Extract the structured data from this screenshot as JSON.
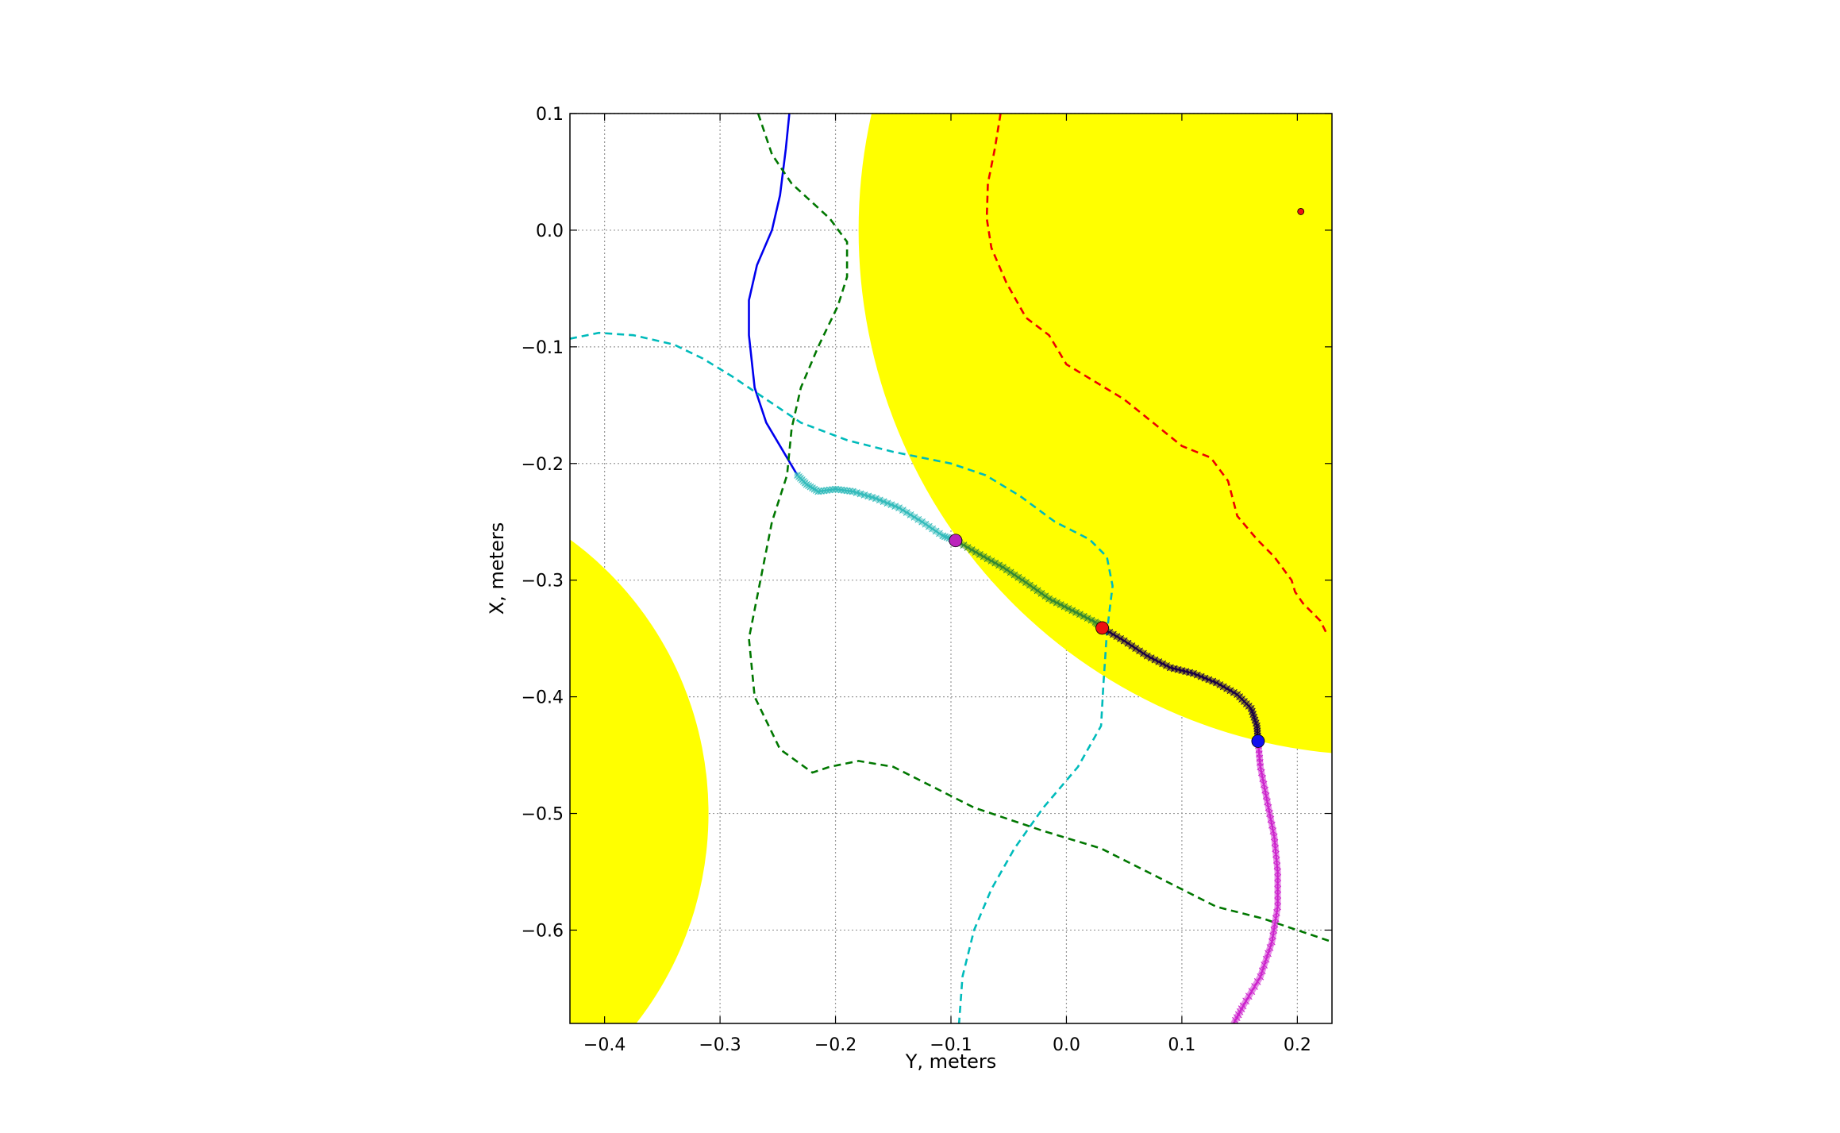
{
  "chart_data": {
    "type": "line",
    "title": "",
    "xlabel": "Y, meters",
    "ylabel": "X, meters",
    "xlim": [
      -0.43,
      0.23
    ],
    "ylim": [
      -0.68,
      0.1
    ],
    "grid": true,
    "grid_style": "dotted",
    "legend": "none",
    "x_ticks": [
      -0.4,
      -0.3,
      -0.2,
      -0.1,
      0.0,
      0.1,
      0.2
    ],
    "x_tick_labels": [
      "−0.4",
      "−0.3",
      "−0.2",
      "−0.1",
      "0.0",
      "0.1",
      "0.2"
    ],
    "y_ticks": [
      0.1,
      0.0,
      -0.1,
      -0.2,
      -0.3,
      -0.4,
      -0.5,
      -0.6
    ],
    "y_tick_labels": [
      "0.1",
      "0.0",
      "−0.1",
      "−0.2",
      "−0.3",
      "−0.4",
      "−0.5",
      "−0.6"
    ],
    "colors": {
      "obstacle": "#ffff00",
      "blue_path": "#0000ee",
      "green_boundary": "#007700",
      "cyan_boundary": "#00bbbb",
      "red_boundary": "#ee0000",
      "cyan_markers": "#33bbbb",
      "green_markers": "#338833",
      "dark_segment": "#1a0044",
      "magenta_markers": "#cc22cc",
      "purple_path": "#5522cc"
    },
    "obstacles": [
      {
        "name": "upper-right",
        "cx": 0.27,
        "cy": 0.0,
        "r": 0.45
      },
      {
        "name": "lower-left",
        "cx": -0.6,
        "cy": -0.5,
        "r": 0.29
      }
    ],
    "series": [
      {
        "style": "solid",
        "color_key": "blue_path",
        "points": [
          [
            -0.24,
            0.1
          ],
          [
            -0.243,
            0.07
          ],
          [
            -0.248,
            0.03
          ],
          [
            -0.255,
            0.0
          ],
          [
            -0.268,
            -0.03
          ],
          [
            -0.275,
            -0.06
          ],
          [
            -0.275,
            -0.09
          ],
          [
            -0.27,
            -0.135
          ],
          [
            -0.26,
            -0.165
          ],
          [
            -0.245,
            -0.19
          ],
          [
            -0.233,
            -0.21
          ]
        ]
      },
      {
        "style": "dashed",
        "color_key": "green_boundary",
        "points": [
          [
            -0.267,
            0.1
          ],
          [
            -0.255,
            0.065
          ],
          [
            -0.238,
            0.04
          ],
          [
            -0.205,
            0.01
          ],
          [
            -0.19,
            -0.01
          ],
          [
            -0.19,
            -0.04
          ],
          [
            -0.198,
            -0.065
          ],
          [
            -0.215,
            -0.1
          ],
          [
            -0.23,
            -0.135
          ],
          [
            -0.238,
            -0.17
          ],
          [
            -0.242,
            -0.21
          ],
          [
            -0.255,
            -0.25
          ],
          [
            -0.265,
            -0.3
          ],
          [
            -0.275,
            -0.35
          ],
          [
            -0.27,
            -0.4
          ],
          [
            -0.248,
            -0.445
          ],
          [
            -0.22,
            -0.465
          ],
          [
            -0.205,
            -0.46
          ],
          [
            -0.18,
            -0.455
          ],
          [
            -0.15,
            -0.46
          ],
          [
            -0.12,
            -0.475
          ],
          [
            -0.08,
            -0.495
          ],
          [
            -0.02,
            -0.515
          ],
          [
            0.03,
            -0.53
          ],
          [
            0.08,
            -0.555
          ],
          [
            0.13,
            -0.58
          ],
          [
            0.17,
            -0.59
          ],
          [
            0.2,
            -0.6
          ],
          [
            0.23,
            -0.61
          ]
        ]
      },
      {
        "style": "dashed",
        "color_key": "cyan_boundary",
        "points": [
          [
            -0.43,
            -0.093
          ],
          [
            -0.405,
            -0.088
          ],
          [
            -0.375,
            -0.09
          ],
          [
            -0.34,
            -0.098
          ],
          [
            -0.315,
            -0.11
          ],
          [
            -0.29,
            -0.125
          ],
          [
            -0.26,
            -0.145
          ],
          [
            -0.23,
            -0.165
          ],
          [
            -0.19,
            -0.18
          ],
          [
            -0.15,
            -0.19
          ],
          [
            -0.1,
            -0.2
          ],
          [
            -0.07,
            -0.21
          ],
          [
            -0.04,
            -0.228
          ],
          [
            -0.01,
            -0.25
          ],
          [
            0.02,
            -0.265
          ],
          [
            0.035,
            -0.28
          ],
          [
            0.04,
            -0.305
          ],
          [
            0.035,
            -0.345
          ],
          [
            0.032,
            -0.39
          ],
          [
            0.03,
            -0.425
          ],
          [
            0.01,
            -0.46
          ],
          [
            -0.02,
            -0.495
          ],
          [
            -0.045,
            -0.53
          ],
          [
            -0.065,
            -0.565
          ],
          [
            -0.08,
            -0.6
          ],
          [
            -0.09,
            -0.64
          ],
          [
            -0.093,
            -0.68
          ]
        ]
      },
      {
        "style": "dashed",
        "color_key": "red_boundary",
        "points": [
          [
            -0.057,
            0.1
          ],
          [
            -0.062,
            0.07
          ],
          [
            -0.068,
            0.04
          ],
          [
            -0.069,
            0.01
          ],
          [
            -0.065,
            -0.015
          ],
          [
            -0.052,
            -0.045
          ],
          [
            -0.035,
            -0.075
          ],
          [
            -0.015,
            -0.09
          ],
          [
            0.0,
            -0.115
          ],
          [
            0.025,
            -0.13
          ],
          [
            0.05,
            -0.145
          ],
          [
            0.075,
            -0.165
          ],
          [
            0.1,
            -0.185
          ],
          [
            0.125,
            -0.195
          ],
          [
            0.14,
            -0.215
          ],
          [
            0.148,
            -0.245
          ],
          [
            0.165,
            -0.265
          ],
          [
            0.18,
            -0.28
          ],
          [
            0.195,
            -0.3
          ],
          [
            0.198,
            -0.31
          ],
          [
            0.205,
            -0.32
          ],
          [
            0.22,
            -0.335
          ],
          [
            0.225,
            -0.345
          ]
        ]
      },
      {
        "style": "markers",
        "color_key": "cyan_markers",
        "points": [
          [
            -0.233,
            -0.21
          ],
          [
            -0.225,
            -0.218
          ],
          [
            -0.215,
            -0.224
          ],
          [
            -0.2,
            -0.222
          ],
          [
            -0.185,
            -0.224
          ],
          [
            -0.165,
            -0.23
          ],
          [
            -0.145,
            -0.238
          ],
          [
            -0.125,
            -0.25
          ],
          [
            -0.107,
            -0.262
          ],
          [
            -0.096,
            -0.266
          ]
        ]
      },
      {
        "style": "markers",
        "color_key": "green_markers",
        "points": [
          [
            -0.096,
            -0.266
          ],
          [
            -0.075,
            -0.278
          ],
          [
            -0.055,
            -0.289
          ],
          [
            -0.035,
            -0.302
          ],
          [
            -0.015,
            -0.316
          ],
          [
            0.005,
            -0.326
          ],
          [
            0.025,
            -0.336
          ],
          [
            0.031,
            -0.341
          ]
        ]
      },
      {
        "style": "markers",
        "color_key": "dark_segment",
        "points": [
          [
            0.031,
            -0.341
          ],
          [
            0.05,
            -0.352
          ],
          [
            0.07,
            -0.365
          ],
          [
            0.09,
            -0.375
          ],
          [
            0.11,
            -0.38
          ],
          [
            0.13,
            -0.388
          ],
          [
            0.148,
            -0.398
          ],
          [
            0.16,
            -0.41
          ],
          [
            0.165,
            -0.425
          ],
          [
            0.166,
            -0.438
          ]
        ]
      },
      {
        "style": "markers",
        "color_key": "magenta_markers",
        "points": [
          [
            0.166,
            -0.438
          ],
          [
            0.168,
            -0.46
          ],
          [
            0.174,
            -0.49
          ],
          [
            0.18,
            -0.52
          ],
          [
            0.183,
            -0.55
          ],
          [
            0.183,
            -0.58
          ],
          [
            0.178,
            -0.61
          ],
          [
            0.168,
            -0.64
          ],
          [
            0.153,
            -0.665
          ],
          [
            0.145,
            -0.68
          ]
        ]
      }
    ],
    "key_points": [
      {
        "x": -0.096,
        "y": -0.266,
        "color": "#bb22bb",
        "size": 8
      },
      {
        "x": 0.031,
        "y": -0.341,
        "color": "#ee1111",
        "size": 8
      },
      {
        "x": 0.166,
        "y": -0.438,
        "color": "#1111ee",
        "size": 8
      },
      {
        "x": 0.203,
        "y": 0.016,
        "color": "#ee1111",
        "size": 4
      }
    ]
  }
}
